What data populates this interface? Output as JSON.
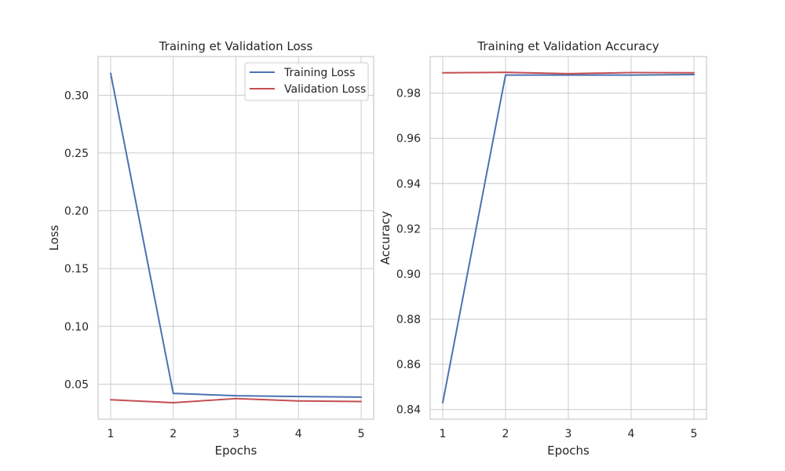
{
  "colors": {
    "training": "#4c72b0",
    "validation": "#c44e52"
  },
  "chart_data": [
    {
      "type": "line",
      "title": "Training et Validation Loss",
      "xlabel": "Epochs",
      "ylabel": "Loss",
      "x": [
        1,
        2,
        3,
        4,
        5
      ],
      "xticks": [
        "1",
        "2",
        "3",
        "4",
        "5"
      ],
      "yticks": [
        "0.05",
        "0.10",
        "0.15",
        "0.20",
        "0.25",
        "0.30"
      ],
      "xlim": [
        0.8,
        5.2
      ],
      "ylim": [
        0.0197,
        0.3335
      ],
      "grid": true,
      "legend": "top-right",
      "series": [
        {
          "name": "Training Loss",
          "color": "#4c72b0",
          "values": [
            0.319,
            0.042,
            0.04,
            0.0393,
            0.0388
          ]
        },
        {
          "name": "Validation Loss",
          "color": "#c44e52",
          "values": [
            0.0365,
            0.034,
            0.0375,
            0.0355,
            0.035
          ]
        }
      ]
    },
    {
      "type": "line",
      "title": "Training et Validation Accuracy",
      "xlabel": "Epochs",
      "ylabel": "Accuracy",
      "x": [
        1,
        2,
        3,
        4,
        5
      ],
      "xticks": [
        "1",
        "2",
        "3",
        "4",
        "5"
      ],
      "yticks": [
        "0.84",
        "0.86",
        "0.88",
        "0.90",
        "0.92",
        "0.94",
        "0.96",
        "0.98"
      ],
      "xlim": [
        0.8,
        5.2
      ],
      "ylim": [
        0.8357,
        0.9962
      ],
      "grid": true,
      "legend": "none",
      "series": [
        {
          "name": "",
          "color": "#4c72b0",
          "values": [
            0.843,
            0.988,
            0.988,
            0.988,
            0.9882
          ]
        },
        {
          "name": "",
          "color": "#c44e52",
          "values": [
            0.989,
            0.9892,
            0.9886,
            0.9891,
            0.989
          ]
        }
      ]
    }
  ]
}
